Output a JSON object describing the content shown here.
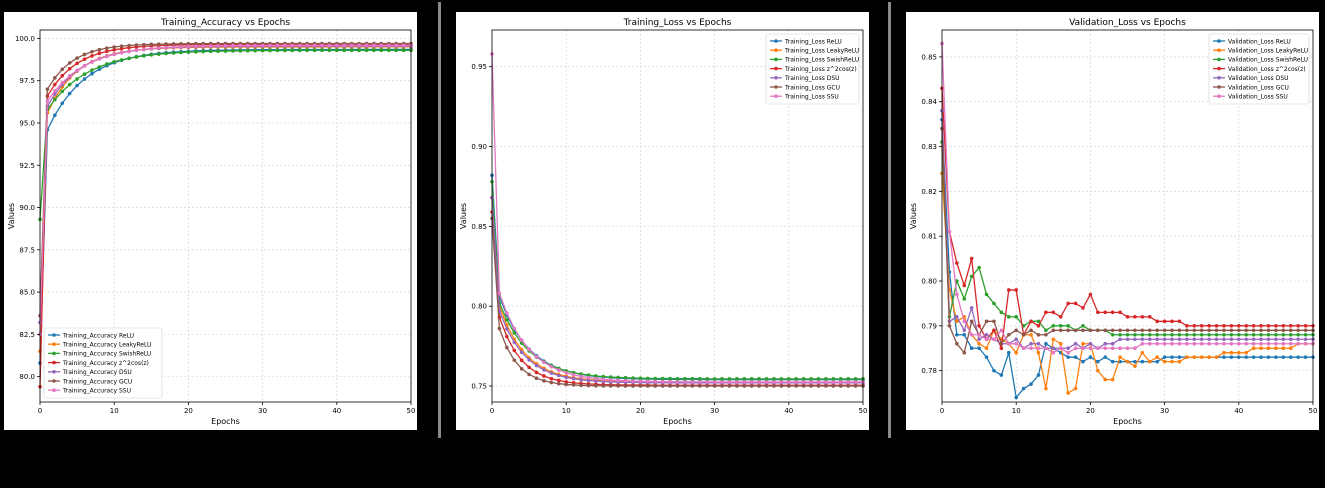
{
  "colors": {
    "ReLU": "#1f77b4",
    "LeakyReLU": "#ff7f0e",
    "SwishReLU": "#2ca02c",
    "z^2cos(z)": "#d62728",
    "DSU": "#9467bd",
    "GCU": "#8c564b",
    "SSU": "#e377c2"
  },
  "chart_data": [
    {
      "type": "line",
      "title": "Training_Accuracy vs Epochs",
      "xlabel": "Epochs",
      "ylabel": "Values",
      "xlim": [
        0,
        50
      ],
      "ylim": [
        78.5,
        100.5
      ],
      "xticks": [
        0,
        10,
        20,
        30,
        40,
        50
      ],
      "yticks": [
        80.0,
        82.5,
        85.0,
        87.5,
        90.0,
        92.5,
        95.0,
        97.5,
        100.0
      ],
      "ytick_decimals": 1,
      "grid": true,
      "legend_position": "lower-left",
      "series": [
        {
          "name": "Training_Accuracy ReLU",
          "key": "ReLU",
          "kind": "acc",
          "start": 80.8,
          "e1": 94.6,
          "final": 99.35,
          "tau": 5.0
        },
        {
          "name": "Training_Accuracy LeakyReLU",
          "key": "LeakyReLU",
          "kind": "acc",
          "start": 81.5,
          "e1": 95.6,
          "final": 99.5,
          "tau": 4.0
        },
        {
          "name": "Training_Accuracy SwishReLU",
          "key": "SwishReLU",
          "kind": "acc",
          "start": 89.3,
          "e1": 95.8,
          "final": 99.3,
          "tau": 5.5
        },
        {
          "name": "Training_Accuracy z^2cos(z)",
          "key": "z^2cos(z)",
          "kind": "acc",
          "start": 79.4,
          "e1": 96.6,
          "final": 99.65,
          "tau": 4.0
        },
        {
          "name": "Training_Accuracy DSU",
          "key": "DSU",
          "kind": "acc",
          "start": 83.2,
          "e1": 96.0,
          "final": 99.55,
          "tau": 4.5
        },
        {
          "name": "Training_Accuracy GCU",
          "key": "GCU",
          "kind": "acc",
          "start": 83.6,
          "e1": 97.0,
          "final": 99.7,
          "tau": 3.5
        },
        {
          "name": "Training_Accuracy SSU",
          "key": "SSU",
          "kind": "acc",
          "start": 82.5,
          "e1": 96.3,
          "final": 99.6,
          "tau": 5.0
        }
      ]
    },
    {
      "type": "line",
      "title": "Training_Loss vs Epochs",
      "xlabel": "Epochs",
      "ylabel": "Values",
      "xlim": [
        0,
        50
      ],
      "ylim": [
        0.74,
        0.973
      ],
      "xticks": [
        0,
        10,
        20,
        30,
        40,
        50
      ],
      "yticks": [
        0.75,
        0.8,
        0.85,
        0.9,
        0.95
      ],
      "ytick_decimals": 2,
      "grid": true,
      "legend_position": "top-right",
      "series": [
        {
          "name": "Training_Loss ReLU",
          "key": "ReLU",
          "kind": "loss",
          "start": 0.882,
          "e1": 0.806,
          "final": 0.754,
          "tau": 4.0
        },
        {
          "name": "Training_Loss LeakyReLU",
          "key": "LeakyReLU",
          "kind": "loss",
          "start": 0.868,
          "e1": 0.8,
          "final": 0.7525,
          "tau": 3.5
        },
        {
          "name": "Training_Loss SwishReLU",
          "key": "SwishReLU",
          "kind": "loss",
          "start": 0.878,
          "e1": 0.802,
          "final": 0.7545,
          "tau": 4.0
        },
        {
          "name": "Training_Loss z^2cos(z)",
          "key": "z^2cos(z)",
          "kind": "loss",
          "start": 0.859,
          "e1": 0.793,
          "final": 0.7505,
          "tau": 3.0
        },
        {
          "name": "Training_Loss DSU",
          "key": "DSU",
          "kind": "loss",
          "start": 0.868,
          "e1": 0.797,
          "final": 0.752,
          "tau": 3.5
        },
        {
          "name": "Training_Loss GCU",
          "key": "GCU",
          "kind": "loss",
          "start": 0.855,
          "e1": 0.786,
          "final": 0.75,
          "tau": 2.5
        },
        {
          "name": "Training_Loss SSU",
          "key": "SSU",
          "kind": "loss",
          "start": 0.958,
          "e1": 0.808,
          "final": 0.7525,
          "tau": 4.0
        }
      ]
    },
    {
      "type": "line",
      "title": "Validation_Loss vs Epochs",
      "xlabel": "Epochs",
      "ylabel": "Values",
      "xlim": [
        0,
        50
      ],
      "ylim": [
        0.773,
        0.856
      ],
      "xticks": [
        0,
        10,
        20,
        30,
        40,
        50
      ],
      "yticks": [
        0.78,
        0.79,
        0.8,
        0.81,
        0.82,
        0.83,
        0.84,
        0.85
      ],
      "ytick_decimals": 2,
      "grid": true,
      "legend_position": "top-right",
      "series": [
        {
          "name": "Validation_Loss ReLU",
          "key": "ReLU",
          "kind": "raw",
          "values": [
            0.836,
            0.802,
            0.788,
            0.788,
            0.785,
            0.785,
            0.783,
            0.78,
            0.779,
            0.784,
            0.774,
            0.776,
            0.777,
            0.779,
            0.786,
            0.785,
            0.784,
            0.783,
            0.783,
            0.782,
            0.783,
            0.782,
            0.783,
            0.782,
            0.782,
            0.782,
            0.782,
            0.782,
            0.782,
            0.782,
            0.783,
            0.783,
            0.783,
            0.783,
            0.783,
            0.783,
            0.783,
            0.783,
            0.783,
            0.783,
            0.783,
            0.783,
            0.783,
            0.783,
            0.783,
            0.783,
            0.783,
            0.783,
            0.783,
            0.783,
            0.783
          ]
        },
        {
          "name": "Validation_Loss LeakyReLU",
          "key": "LeakyReLU",
          "kind": "raw",
          "values": [
            0.824,
            0.798,
            0.791,
            0.792,
            0.788,
            0.786,
            0.785,
            0.789,
            0.787,
            0.786,
            0.784,
            0.788,
            0.788,
            0.784,
            0.776,
            0.787,
            0.786,
            0.775,
            0.776,
            0.786,
            0.786,
            0.78,
            0.778,
            0.778,
            0.783,
            0.782,
            0.781,
            0.784,
            0.782,
            0.783,
            0.782,
            0.782,
            0.782,
            0.783,
            0.783,
            0.783,
            0.783,
            0.783,
            0.784,
            0.784,
            0.784,
            0.784,
            0.785,
            0.785,
            0.785,
            0.785,
            0.785,
            0.785,
            0.786,
            0.786,
            0.786
          ]
        },
        {
          "name": "Validation_Loss SwishReLU",
          "key": "SwishReLU",
          "kind": "raw",
          "values": [
            0.831,
            0.792,
            0.8,
            0.796,
            0.801,
            0.803,
            0.797,
            0.795,
            0.793,
            0.792,
            0.792,
            0.79,
            0.791,
            0.791,
            0.789,
            0.79,
            0.79,
            0.79,
            0.789,
            0.79,
            0.789,
            0.789,
            0.789,
            0.788,
            0.788,
            0.788,
            0.788,
            0.788,
            0.788,
            0.788,
            0.788,
            0.788,
            0.788,
            0.788,
            0.788,
            0.788,
            0.788,
            0.788,
            0.788,
            0.788,
            0.788,
            0.788,
            0.788,
            0.788,
            0.788,
            0.788,
            0.788,
            0.788,
            0.788,
            0.788,
            0.788
          ]
        },
        {
          "name": "Validation_Loss z^2cos(z)",
          "key": "z^2cos(z)",
          "kind": "raw",
          "values": [
            0.843,
            0.811,
            0.804,
            0.799,
            0.805,
            0.79,
            0.787,
            0.789,
            0.785,
            0.798,
            0.798,
            0.788,
            0.791,
            0.79,
            0.793,
            0.793,
            0.792,
            0.795,
            0.795,
            0.794,
            0.797,
            0.793,
            0.793,
            0.793,
            0.793,
            0.792,
            0.792,
            0.792,
            0.792,
            0.791,
            0.791,
            0.791,
            0.791,
            0.79,
            0.79,
            0.79,
            0.79,
            0.79,
            0.79,
            0.79,
            0.79,
            0.79,
            0.79,
            0.79,
            0.79,
            0.79,
            0.79,
            0.79,
            0.79,
            0.79,
            0.79
          ]
        },
        {
          "name": "Validation_Loss DSU",
          "key": "DSU",
          "kind": "raw",
          "values": [
            0.838,
            0.791,
            0.792,
            0.789,
            0.794,
            0.787,
            0.788,
            0.787,
            0.786,
            0.786,
            0.787,
            0.785,
            0.786,
            0.786,
            0.785,
            0.785,
            0.785,
            0.785,
            0.786,
            0.785,
            0.786,
            0.785,
            0.786,
            0.786,
            0.787,
            0.787,
            0.787,
            0.787,
            0.787,
            0.787,
            0.787,
            0.787,
            0.787,
            0.787,
            0.787,
            0.787,
            0.787,
            0.787,
            0.787,
            0.787,
            0.787,
            0.787,
            0.787,
            0.787,
            0.787,
            0.787,
            0.787,
            0.787,
            0.787,
            0.787,
            0.787
          ]
        },
        {
          "name": "Validation_Loss GCU",
          "key": "GCU",
          "kind": "raw",
          "values": [
            0.834,
            0.79,
            0.786,
            0.784,
            0.791,
            0.788,
            0.791,
            0.791,
            0.786,
            0.788,
            0.789,
            0.788,
            0.789,
            0.788,
            0.788,
            0.789,
            0.789,
            0.789,
            0.789,
            0.789,
            0.789,
            0.789,
            0.789,
            0.789,
            0.789,
            0.789,
            0.789,
            0.789,
            0.789,
            0.789,
            0.789,
            0.789,
            0.789,
            0.789,
            0.789,
            0.789,
            0.789,
            0.789,
            0.789,
            0.789,
            0.789,
            0.789,
            0.789,
            0.789,
            0.789,
            0.789,
            0.789,
            0.789,
            0.789,
            0.789,
            0.789
          ]
        },
        {
          "name": "Validation_Loss SSU",
          "key": "SSU",
          "kind": "raw",
          "values": [
            0.853,
            0.811,
            0.797,
            0.791,
            0.788,
            0.788,
            0.787,
            0.787,
            0.789,
            0.786,
            0.786,
            0.785,
            0.785,
            0.785,
            0.785,
            0.784,
            0.785,
            0.784,
            0.785,
            0.785,
            0.785,
            0.785,
            0.785,
            0.785,
            0.785,
            0.785,
            0.785,
            0.786,
            0.786,
            0.786,
            0.786,
            0.786,
            0.786,
            0.786,
            0.786,
            0.786,
            0.786,
            0.786,
            0.786,
            0.786,
            0.786,
            0.786,
            0.786,
            0.786,
            0.786,
            0.786,
            0.786,
            0.786,
            0.786,
            0.786,
            0.786
          ]
        }
      ]
    }
  ]
}
